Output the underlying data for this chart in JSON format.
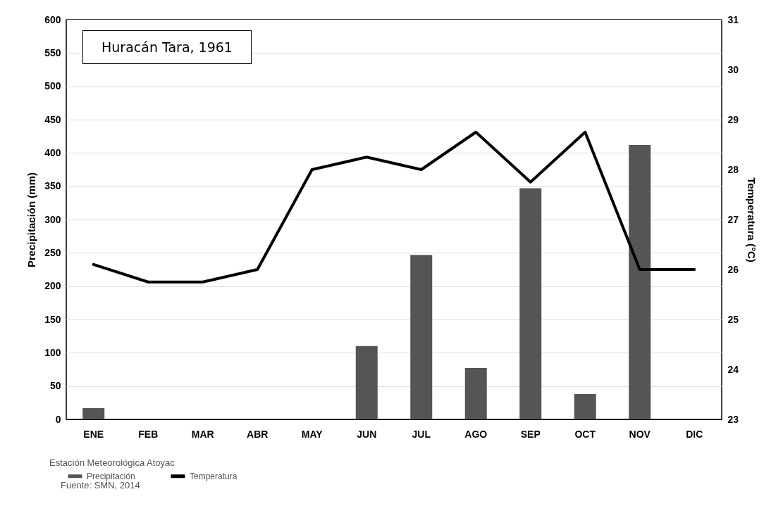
{
  "chart_data": {
    "type": "bar",
    "title": "Huracán Tara, 1961",
    "ylabel": "Precipitación (mm)",
    "y2label": "Temperatura  (°C)",
    "categories": [
      "ENE",
      "FEB",
      "MAR",
      "ABR",
      "MAY",
      "JUN",
      "JUL",
      "AGO",
      "SEP",
      "OCT",
      "NOV",
      "DIC"
    ],
    "series": [
      {
        "name": "Precipitación",
        "color": "#555555",
        "values": [
          17,
          0,
          0,
          0,
          0,
          110,
          247,
          77,
          347,
          38,
          412,
          0
        ]
      },
      {
        "name": "Temperatura",
        "type": "line",
        "axis": "y2",
        "color": "#000000",
        "values": [
          26.1,
          25.75,
          25.75,
          26.0,
          28.0,
          28.25,
          28.0,
          28.75,
          27.75,
          28.75,
          26.0,
          26.0
        ]
      }
    ],
    "ylim": [
      0,
      600
    ],
    "yticks": [
      0,
      50,
      100,
      150,
      200,
      250,
      300,
      350,
      400,
      450,
      500,
      550,
      600
    ],
    "y2lim": [
      23,
      31
    ],
    "y2ticks": [
      23,
      24,
      25,
      26,
      27,
      28,
      29,
      30,
      31
    ],
    "grid": "y",
    "legend": "bottom",
    "annotations": [
      "Estación Meteorológica Atoyac",
      "Fuente: SMN, 2014"
    ]
  }
}
